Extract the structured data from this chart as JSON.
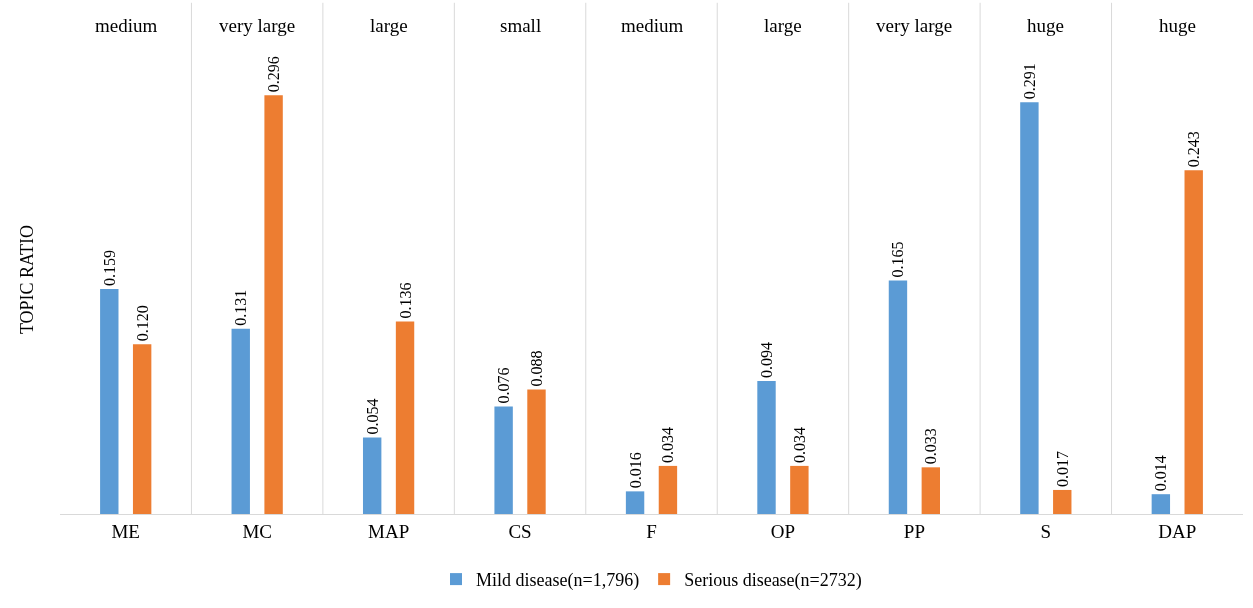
{
  "chart_data": {
    "type": "bar",
    "ylabel": "TOPIC RATIO",
    "categories": [
      "ME",
      "MC",
      "MAP",
      "CS",
      "F",
      "OP",
      "PP",
      "S",
      "DAP"
    ],
    "series": [
      {
        "name": "Mild disease(n=1,796)",
        "color": "#5b9bd5",
        "values": [
          0.159,
          0.131,
          0.054,
          0.076,
          0.016,
          0.094,
          0.165,
          0.291,
          0.014
        ],
        "value_labels": [
          "0.159",
          "0.131",
          "0.054",
          "0.076",
          "0.016",
          "0.094",
          "0.165",
          "0.291",
          "0.014"
        ]
      },
      {
        "name": "Serious disease(n=2732)",
        "color": "#ed7d31",
        "values": [
          0.12,
          0.296,
          0.136,
          0.088,
          0.034,
          0.034,
          0.033,
          0.017,
          0.243
        ],
        "value_labels": [
          "0.120",
          "0.296",
          "0.136",
          "0.088",
          "0.034",
          "0.034",
          "0.033",
          "0.017",
          "0.243"
        ]
      }
    ],
    "grid": "x",
    "legend": "bottom",
    "annotations": [
      "medium",
      "very large",
      "large",
      "small",
      "medium",
      "large",
      "very large",
      "huge",
      "huge"
    ]
  }
}
